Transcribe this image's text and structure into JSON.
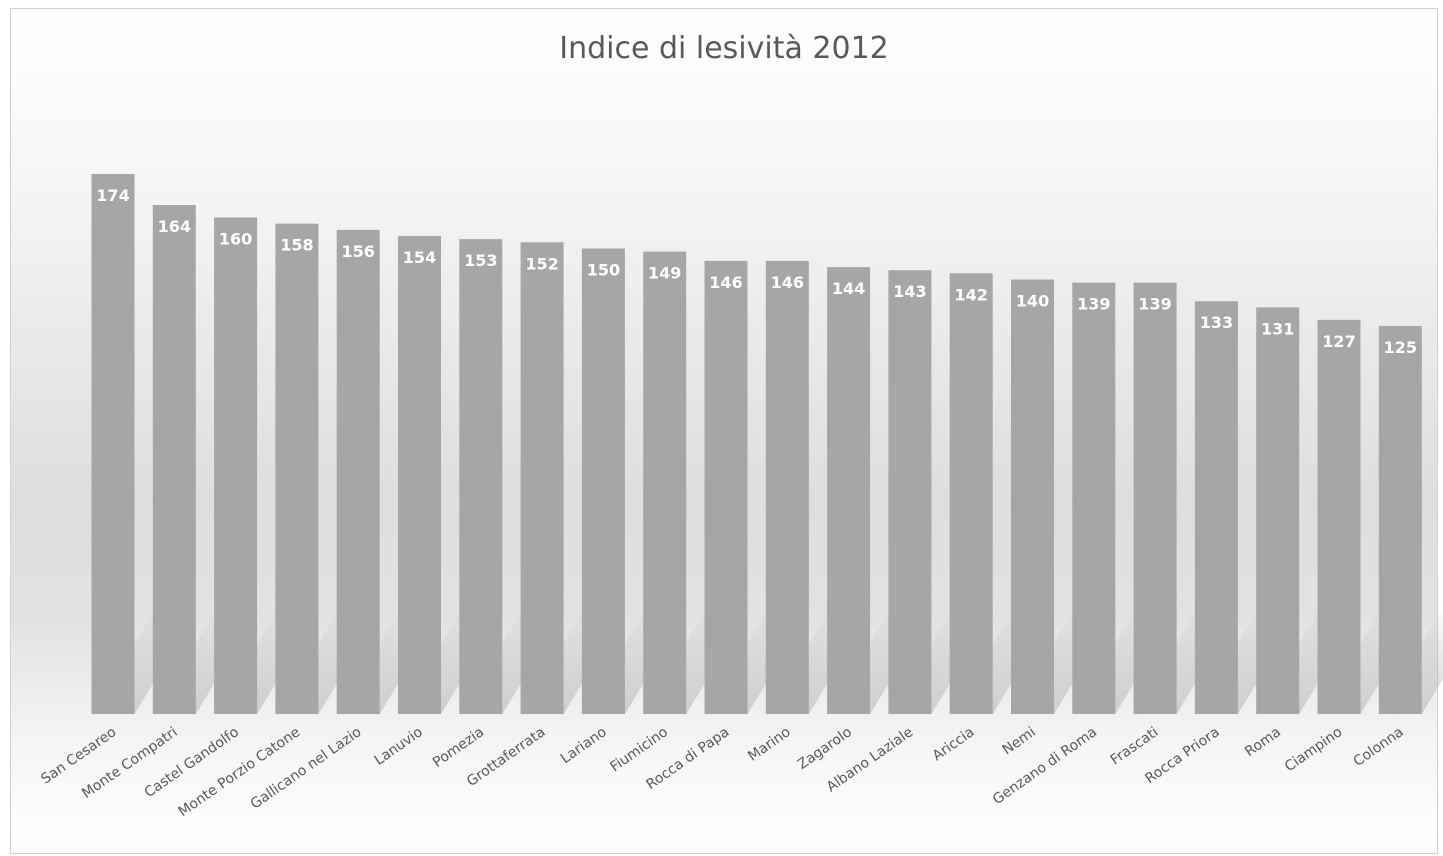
{
  "chart_data": {
    "type": "bar",
    "title": "Indice di lesività 2012",
    "categories": [
      "San Cesareo",
      "Monte Compatri",
      "Castel Gandolfo",
      "Monte Porzio Catone",
      "Gallicano nel Lazio",
      "Lanuvio",
      "Pomezia",
      "Grottaferrata",
      "Lariano",
      "Fiumicino",
      "Rocca di Papa",
      "Marino",
      "Zagarolo",
      "Albano Laziale",
      "Ariccia",
      "Nemi",
      "Genzano di Roma",
      "Frascati",
      "Rocca Priora",
      "Roma",
      "Ciampino",
      "Colonna"
    ],
    "values": [
      174,
      164,
      160,
      158,
      156,
      154,
      153,
      152,
      150,
      149,
      146,
      146,
      144,
      143,
      142,
      140,
      139,
      139,
      133,
      131,
      127,
      125
    ],
    "ylim": [
      0,
      174
    ],
    "bar_color": "#a6a6a6",
    "label_color": "#ffffff",
    "grid": false,
    "legend": "none"
  }
}
